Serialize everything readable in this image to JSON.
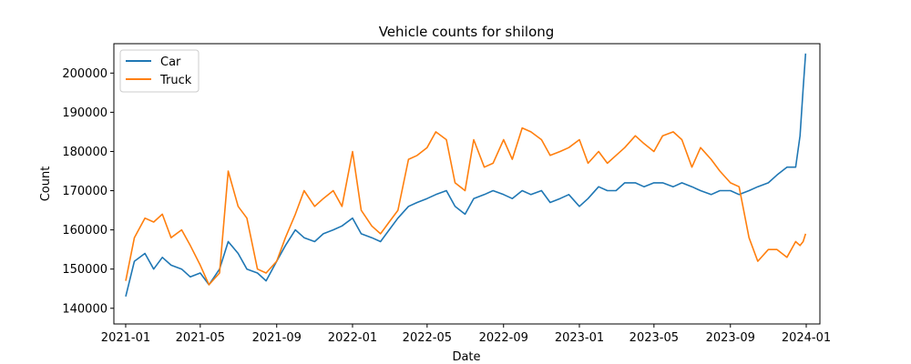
{
  "chart_data": {
    "type": "line",
    "title": "Vehicle counts for shilong",
    "xlabel": "Date",
    "ylabel": "Count",
    "xlim": [
      "2020-12-13",
      "2024-01-23"
    ],
    "ylim": [
      136000,
      207500
    ],
    "x_ticks": [
      "2021-01",
      "2021-05",
      "2021-09",
      "2022-01",
      "2022-05",
      "2022-09",
      "2023-01",
      "2023-05",
      "2023-09",
      "2024-01"
    ],
    "y_ticks": [
      140000,
      150000,
      160000,
      170000,
      180000,
      190000,
      200000
    ],
    "y_tick_labels": [
      "140000",
      "150000",
      "160000",
      "170000",
      "180000",
      "190000",
      "200000"
    ],
    "grid": false,
    "legend": "top-left",
    "series": [
      {
        "name": "Car",
        "color": "#1f77b4",
        "x": [
          "2021-01-01",
          "2021-01-15",
          "2021-02-01",
          "2021-02-15",
          "2021-03-01",
          "2021-03-15",
          "2021-04-01",
          "2021-04-15",
          "2021-05-01",
          "2021-05-15",
          "2021-06-01",
          "2021-06-15",
          "2021-07-01",
          "2021-07-15",
          "2021-08-01",
          "2021-08-15",
          "2021-09-01",
          "2021-09-15",
          "2021-10-01",
          "2021-10-15",
          "2021-11-01",
          "2021-11-15",
          "2021-12-01",
          "2021-12-15",
          "2022-01-01",
          "2022-01-15",
          "2022-02-01",
          "2022-02-15",
          "2022-03-01",
          "2022-03-15",
          "2022-04-01",
          "2022-04-15",
          "2022-05-01",
          "2022-05-15",
          "2022-06-01",
          "2022-06-15",
          "2022-07-01",
          "2022-07-15",
          "2022-08-01",
          "2022-08-15",
          "2022-09-01",
          "2022-09-15",
          "2022-10-01",
          "2022-10-15",
          "2022-11-01",
          "2022-11-15",
          "2022-12-01",
          "2022-12-15",
          "2023-01-01",
          "2023-01-15",
          "2023-02-01",
          "2023-02-15",
          "2023-03-01",
          "2023-03-15",
          "2023-04-01",
          "2023-04-15",
          "2023-05-01",
          "2023-05-15",
          "2023-06-01",
          "2023-06-15",
          "2023-07-01",
          "2023-07-15",
          "2023-08-01",
          "2023-08-15",
          "2023-09-01",
          "2023-09-15",
          "2023-10-01",
          "2023-10-15",
          "2023-11-01",
          "2023-11-15",
          "2023-12-01",
          "2023-12-15",
          "2023-12-22",
          "2023-12-27",
          "2023-12-31"
        ],
        "values": [
          143000,
          152000,
          154000,
          150000,
          153000,
          151000,
          150000,
          148000,
          149000,
          146000,
          150000,
          157000,
          154000,
          150000,
          149000,
          147000,
          152000,
          156000,
          160000,
          158000,
          157000,
          159000,
          160000,
          161000,
          163000,
          159000,
          158000,
          157000,
          160000,
          163000,
          166000,
          167000,
          168000,
          169000,
          170000,
          166000,
          164000,
          168000,
          169000,
          170000,
          169000,
          168000,
          170000,
          169000,
          170000,
          167000,
          168000,
          169000,
          166000,
          168000,
          171000,
          170000,
          170000,
          172000,
          172000,
          171000,
          172000,
          172000,
          171000,
          172000,
          171000,
          170000,
          169000,
          170000,
          170000,
          169000,
          170000,
          171000,
          172000,
          174000,
          176000,
          176000,
          184000,
          196000,
          205000
        ]
      },
      {
        "name": "Truck",
        "color": "#ff7f0e",
        "x": [
          "2021-01-01",
          "2021-01-15",
          "2021-02-01",
          "2021-02-15",
          "2021-03-01",
          "2021-03-15",
          "2021-04-01",
          "2021-04-15",
          "2021-05-01",
          "2021-05-15",
          "2021-06-01",
          "2021-06-15",
          "2021-07-01",
          "2021-07-15",
          "2021-08-01",
          "2021-08-15",
          "2021-09-01",
          "2021-09-15",
          "2021-10-01",
          "2021-10-15",
          "2021-11-01",
          "2021-11-15",
          "2021-12-01",
          "2021-12-15",
          "2022-01-01",
          "2022-01-15",
          "2022-02-01",
          "2022-02-15",
          "2022-03-01",
          "2022-03-15",
          "2022-04-01",
          "2022-04-15",
          "2022-05-01",
          "2022-05-15",
          "2022-06-01",
          "2022-06-15",
          "2022-07-01",
          "2022-07-15",
          "2022-08-01",
          "2022-08-15",
          "2022-09-01",
          "2022-09-15",
          "2022-10-01",
          "2022-10-15",
          "2022-11-01",
          "2022-11-15",
          "2022-12-01",
          "2022-12-15",
          "2023-01-01",
          "2023-01-15",
          "2023-02-01",
          "2023-02-15",
          "2023-03-01",
          "2023-03-15",
          "2023-04-01",
          "2023-04-15",
          "2023-05-01",
          "2023-05-15",
          "2023-06-01",
          "2023-06-15",
          "2023-07-01",
          "2023-07-15",
          "2023-08-01",
          "2023-08-15",
          "2023-09-01",
          "2023-09-15",
          "2023-10-01",
          "2023-10-15",
          "2023-11-01",
          "2023-11-15",
          "2023-12-01",
          "2023-12-15",
          "2023-12-22",
          "2023-12-27",
          "2023-12-31"
        ],
        "values": [
          147000,
          158000,
          163000,
          162000,
          164000,
          158000,
          160000,
          156000,
          151000,
          146000,
          149000,
          175000,
          166000,
          163000,
          150000,
          149000,
          152000,
          158000,
          164000,
          170000,
          166000,
          168000,
          170000,
          166000,
          180000,
          165000,
          161000,
          159000,
          162000,
          165000,
          178000,
          179000,
          181000,
          185000,
          183000,
          172000,
          170000,
          183000,
          176000,
          177000,
          183000,
          178000,
          186000,
          185000,
          183000,
          179000,
          180000,
          181000,
          183000,
          177000,
          180000,
          177000,
          179000,
          181000,
          184000,
          182000,
          180000,
          184000,
          185000,
          183000,
          176000,
          181000,
          178000,
          175000,
          172000,
          171000,
          158000,
          152000,
          155000,
          155000,
          153000,
          157000,
          156000,
          157000,
          159000
        ]
      }
    ]
  }
}
